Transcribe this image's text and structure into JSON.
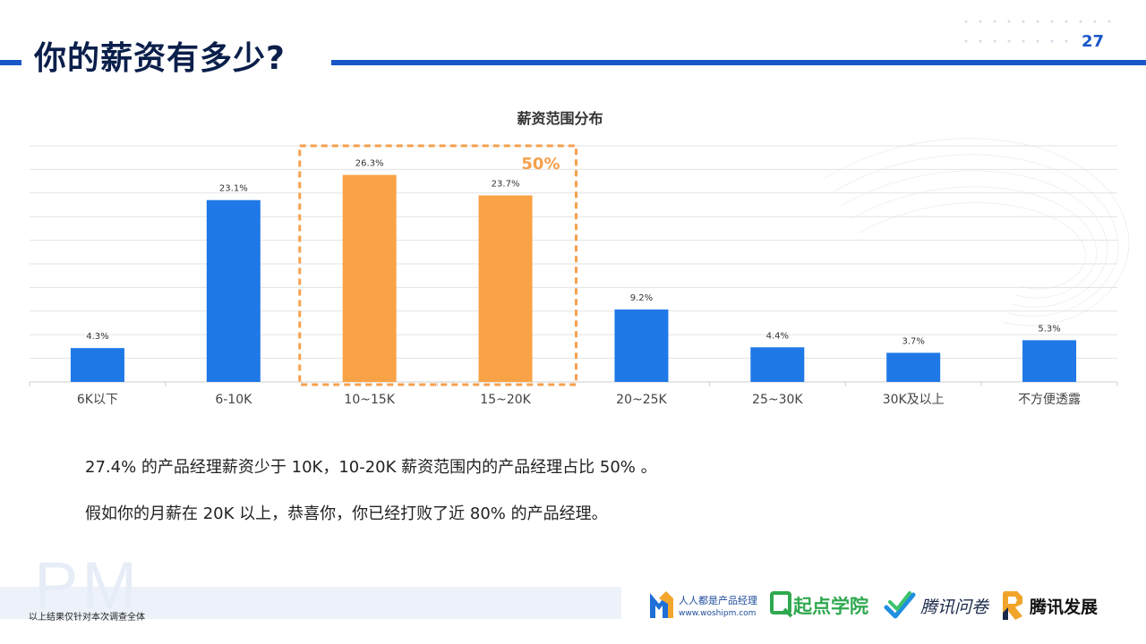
{
  "header": {
    "title": "你的薪资有多少?",
    "page_number": "27"
  },
  "chart_data": {
    "type": "bar",
    "title": "薪资范围分布",
    "categories": [
      "6K以下",
      "6-10K",
      "10~15K",
      "15~20K",
      "20~25K",
      "25~30K",
      "30K及以上",
      "不方便透露"
    ],
    "values": [
      4.3,
      23.1,
      26.3,
      23.7,
      9.2,
      4.4,
      3.7,
      5.3
    ],
    "value_labels": [
      "4.3%",
      "23.1%",
      "26.3%",
      "23.7%",
      "9.2%",
      "4.4%",
      "3.7%",
      "5.3%"
    ],
    "highlighted_categories": [
      "10~15K",
      "15~20K"
    ],
    "highlight_label": "50%",
    "ylim": [
      0,
      30
    ],
    "grid": true,
    "colors": {
      "normal": "#1f78e6",
      "highlight": "#f9a246",
      "box": "#f6a04d"
    }
  },
  "description": {
    "line1": "27.4% 的产品经理薪资少于 10K，10-20K 薪资范围内的产品经理占比 50% 。",
    "line2": "假如你的月薪在 20K 以上，恭喜你，你已经打败了近 80% 的产品经理。"
  },
  "footer": {
    "watermark": "PM",
    "note": "以上结果仅针对本次调查全体",
    "logos": {
      "woshipm_name": "人人都是产品经理",
      "woshipm_url": "www.woshipm.com",
      "qidian": "起点学院",
      "wenjuan": "腾讯问卷",
      "fazhan": "腾讯发展"
    }
  }
}
